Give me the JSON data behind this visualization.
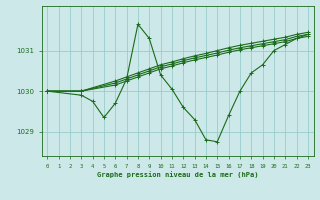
{
  "background_color": "#cce8e8",
  "grid_color": "#99cccc",
  "line_color": "#1a6b1a",
  "title": "Graphe pression niveau de la mer (hPa)",
  "xlim": [
    -0.5,
    23.5
  ],
  "ylim": [
    1028.4,
    1032.1
  ],
  "yticks": [
    1029,
    1030,
    1031
  ],
  "xticks": [
    0,
    1,
    2,
    3,
    4,
    5,
    6,
    7,
    8,
    9,
    10,
    11,
    12,
    13,
    14,
    15,
    16,
    17,
    18,
    19,
    20,
    21,
    22,
    23
  ],
  "series": [
    {
      "x": [
        0,
        3,
        4,
        5,
        6,
        7,
        8,
        9,
        10,
        11,
        12,
        13,
        14,
        15,
        16,
        17,
        18,
        19,
        20,
        21,
        22,
        23
      ],
      "y": [
        1030.0,
        1029.9,
        1029.75,
        1029.35,
        1029.7,
        1030.3,
        1031.65,
        1031.3,
        1030.4,
        1030.05,
        1029.6,
        1029.3,
        1028.8,
        1028.75,
        1029.4,
        1030.0,
        1030.45,
        1030.65,
        1031.0,
        1031.15,
        1031.3,
        1031.4
      ]
    },
    {
      "x": [
        0,
        3,
        6,
        7,
        8,
        9,
        10,
        11,
        12,
        13,
        14,
        15,
        16,
        17,
        18,
        19,
        20,
        21,
        22,
        23
      ],
      "y": [
        1030.0,
        1030.0,
        1030.25,
        1030.35,
        1030.45,
        1030.55,
        1030.65,
        1030.72,
        1030.8,
        1030.87,
        1030.93,
        1031.0,
        1031.07,
        1031.13,
        1031.18,
        1031.23,
        1031.28,
        1031.33,
        1031.4,
        1031.45
      ]
    },
    {
      "x": [
        0,
        3,
        6,
        7,
        8,
        9,
        10,
        11,
        12,
        13,
        14,
        15,
        16,
        17,
        18,
        19,
        20,
        21,
        22,
        23
      ],
      "y": [
        1030.0,
        1030.0,
        1030.2,
        1030.3,
        1030.4,
        1030.5,
        1030.6,
        1030.67,
        1030.75,
        1030.82,
        1030.88,
        1030.94,
        1031.01,
        1031.07,
        1031.12,
        1031.17,
        1031.22,
        1031.27,
        1031.35,
        1031.4
      ]
    },
    {
      "x": [
        0,
        3,
        6,
        7,
        8,
        9,
        10,
        11,
        12,
        13,
        14,
        15,
        16,
        17,
        18,
        19,
        20,
        21,
        22,
        23
      ],
      "y": [
        1030.0,
        1030.0,
        1030.15,
        1030.25,
        1030.35,
        1030.45,
        1030.55,
        1030.62,
        1030.7,
        1030.77,
        1030.83,
        1030.89,
        1030.96,
        1031.02,
        1031.07,
        1031.12,
        1031.17,
        1031.22,
        1031.3,
        1031.35
      ]
    }
  ]
}
